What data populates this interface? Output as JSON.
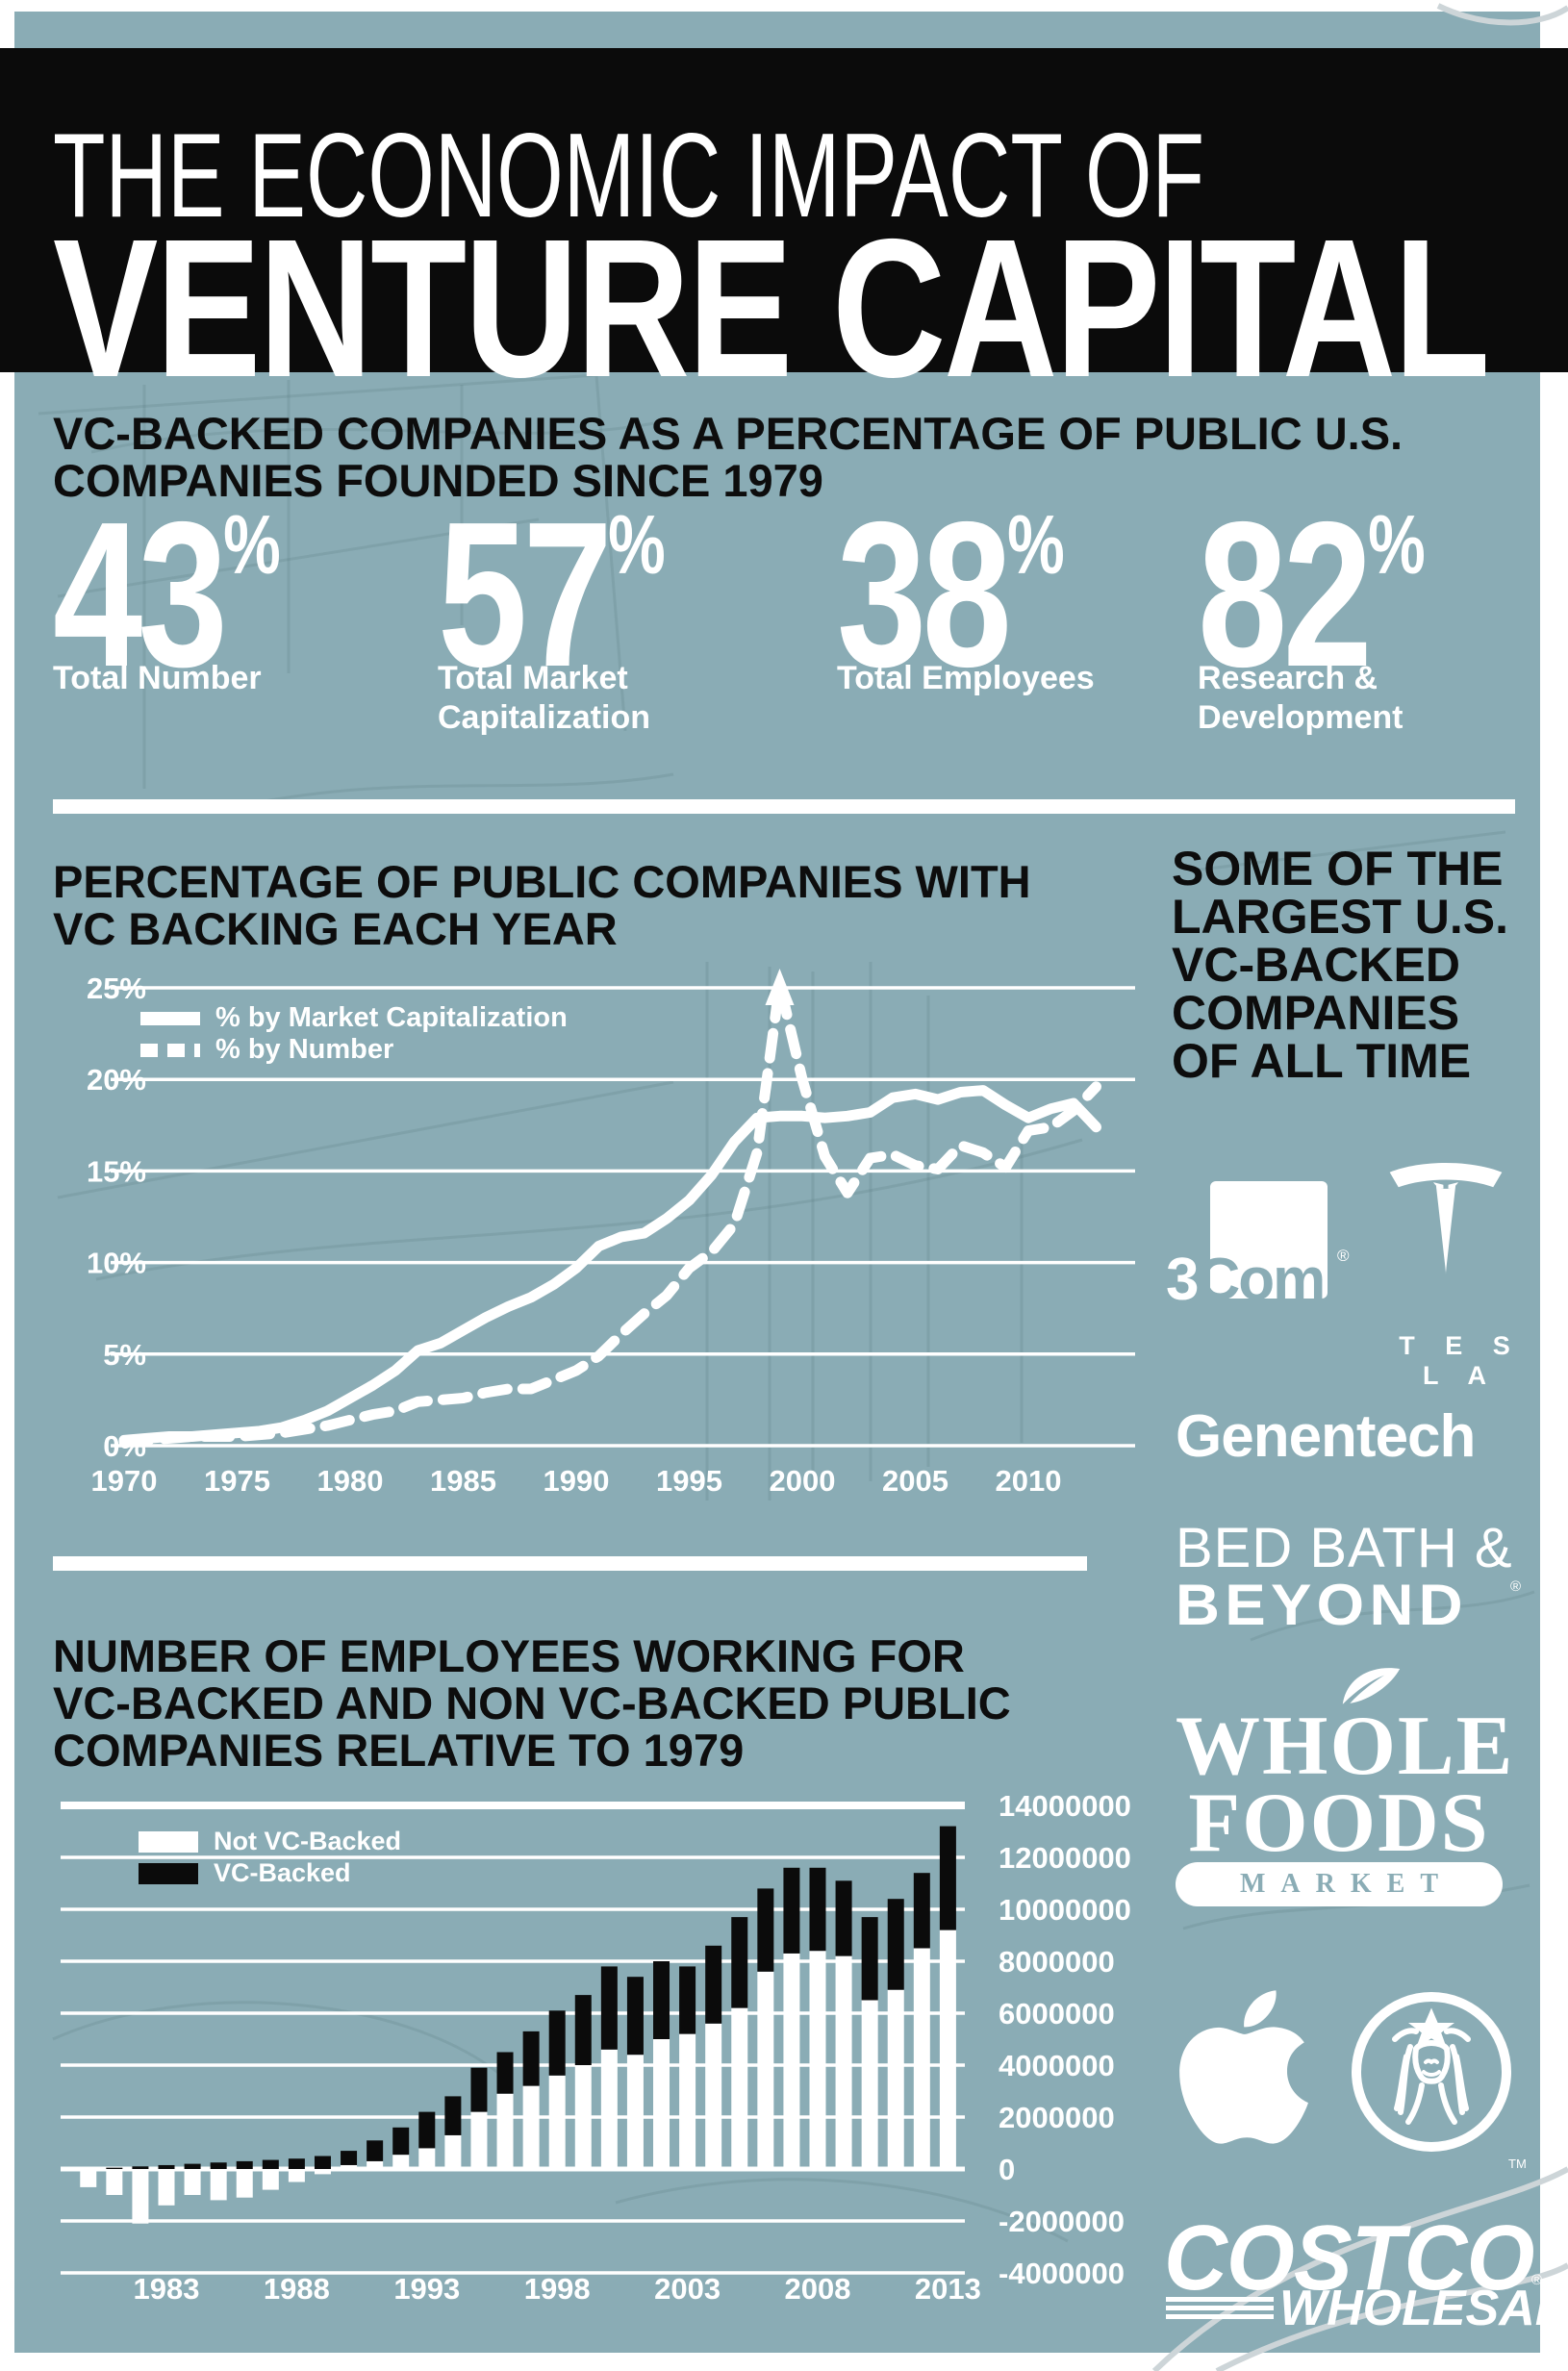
{
  "colors": {
    "background": "#8aacb5",
    "header": "#0b0b0b",
    "text": "#0d0d0d",
    "accent": "#ffffff"
  },
  "header": {
    "line1": "THE ECONOMIC IMPACT OF",
    "line2": "VENTURE CAPITAL"
  },
  "intro": {
    "heading_lines": [
      "VC-BACKED COMPANIES AS A PERCENTAGE OF PUBLIC U.S.",
      "COMPANIES FOUNDED SINCE 1979"
    ],
    "stats": [
      {
        "value": "43",
        "unit": "%",
        "label_lines": [
          "Total Number"
        ]
      },
      {
        "value": "57",
        "unit": "%",
        "label_lines": [
          "Total Market",
          "Capitalization"
        ]
      },
      {
        "value": "38",
        "unit": "%",
        "label_lines": [
          "Total Employees"
        ]
      },
      {
        "value": "82",
        "unit": "%",
        "label_lines": [
          "Research &",
          "Development"
        ]
      }
    ]
  },
  "chart_data": [
    {
      "type": "line",
      "title_lines": [
        "PERCENTAGE OF PUBLIC COMPANIES WITH",
        "VC BACKING EACH YEAR"
      ],
      "x_years": [
        1970,
        1971,
        1972,
        1973,
        1974,
        1975,
        1976,
        1977,
        1978,
        1979,
        1980,
        1981,
        1982,
        1983,
        1984,
        1985,
        1986,
        1987,
        1988,
        1989,
        1990,
        1991,
        1992,
        1993,
        1994,
        1995,
        1996,
        1997,
        1998,
        1999,
        2000,
        2001,
        2002,
        2003,
        2004,
        2005,
        2006,
        2007,
        2008,
        2009,
        2010,
        2011,
        2012,
        2013
      ],
      "series": [
        {
          "name": "% by Market Capitalization",
          "dash": false,
          "values": [
            0.3,
            0.4,
            0.5,
            0.5,
            0.6,
            0.7,
            0.8,
            1.0,
            1.4,
            1.9,
            2.6,
            3.3,
            4.1,
            5.2,
            5.6,
            6.3,
            7.0,
            7.6,
            8.1,
            8.8,
            9.7,
            10.9,
            11.4,
            11.6,
            12.4,
            13.4,
            14.8,
            16.6,
            17.9,
            18.0,
            18.0,
            17.9,
            18.0,
            18.2,
            19.0,
            19.2,
            18.9,
            19.3,
            19.4,
            18.6,
            17.9,
            18.4,
            18.7,
            17.4
          ]
        },
        {
          "name": "% by Number",
          "dash": true,
          "values": [
            0.2,
            0.3,
            0.4,
            0.5,
            0.5,
            0.5,
            0.6,
            0.7,
            0.9,
            1.1,
            1.4,
            1.7,
            1.9,
            2.4,
            2.5,
            2.6,
            2.9,
            3.1,
            3.1,
            3.6,
            4.1,
            4.9,
            6.1,
            7.2,
            8.2,
            9.7,
            10.6,
            12.1,
            16.0,
            25.2,
            20.0,
            15.8,
            13.8,
            15.7,
            15.9,
            15.3,
            15.1,
            16.4,
            16.0,
            15.2,
            17.2,
            17.4,
            18.3,
            19.6
          ]
        }
      ],
      "legend": [
        {
          "label": "% by Market Capitalization"
        },
        {
          "label": "% by Number"
        }
      ],
      "yticks": [
        {
          "value": 25,
          "label": "25%"
        },
        {
          "value": 20,
          "label": "20%"
        },
        {
          "value": 15,
          "label": "15%"
        },
        {
          "value": 10,
          "label": "10%"
        },
        {
          "value": 5,
          "label": "5%"
        },
        {
          "value": 0,
          "label": "0%"
        }
      ],
      "xticks": [
        1970,
        1975,
        1980,
        1985,
        1990,
        1995,
        2000,
        2005,
        2010
      ],
      "ylim": [
        0,
        25
      ],
      "grid": true,
      "annotation_arrow": {
        "series": "% by Number",
        "year": 1999,
        "note": "peak goes off scale"
      }
    },
    {
      "type": "bar",
      "title_lines": [
        "NUMBER OF EMPLOYEES WORKING FOR",
        "VC-BACKED AND NON VC-BACKED PUBLIC",
        "COMPANIES RELATIVE TO 1979"
      ],
      "stacked": true,
      "x_years": [
        1980,
        1981,
        1982,
        1983,
        1984,
        1985,
        1986,
        1987,
        1988,
        1989,
        1990,
        1991,
        1992,
        1993,
        1994,
        1995,
        1996,
        1997,
        1998,
        1999,
        2000,
        2001,
        2002,
        2003,
        2004,
        2005,
        2006,
        2007,
        2008,
        2009,
        2010,
        2011,
        2012,
        2013
      ],
      "series": [
        {
          "name": "Not VC-Backed",
          "color": "#ffffff",
          "values": [
            -700000,
            -1000000,
            -2100000,
            -1400000,
            -1000000,
            -1200000,
            -1100000,
            -800000,
            -500000,
            -200000,
            150000,
            300000,
            550000,
            800000,
            1300000,
            2200000,
            2900000,
            3200000,
            3600000,
            4000000,
            4600000,
            4400000,
            5000000,
            5200000,
            5600000,
            6200000,
            7600000,
            8300000,
            8400000,
            8200000,
            6500000,
            6900000,
            8500000,
            9200000
          ]
        },
        {
          "name": "VC-Backed",
          "color": "#0b0b0b",
          "values": [
            0,
            50000,
            100000,
            150000,
            200000,
            250000,
            300000,
            350000,
            400000,
            500000,
            550000,
            800000,
            1050000,
            1400000,
            1500000,
            1700000,
            1600000,
            2100000,
            2500000,
            2700000,
            3200000,
            3000000,
            3000000,
            2600000,
            3000000,
            3500000,
            3200000,
            3300000,
            3200000,
            2900000,
            3200000,
            3500000,
            2900000,
            4000000
          ]
        }
      ],
      "legend": [
        {
          "label": "Not VC-Backed"
        },
        {
          "label": "VC-Backed"
        }
      ],
      "yticks": [
        {
          "value": 14000000,
          "label": "14000000"
        },
        {
          "value": 12000000,
          "label": "12000000"
        },
        {
          "value": 10000000,
          "label": "10000000"
        },
        {
          "value": 8000000,
          "label": "8000000"
        },
        {
          "value": 6000000,
          "label": "6000000"
        },
        {
          "value": 4000000,
          "label": "4000000"
        },
        {
          "value": 2000000,
          "label": "2000000"
        },
        {
          "value": 0,
          "label": "0"
        },
        {
          "value": -2000000,
          "label": "-2000000"
        },
        {
          "value": -4000000,
          "label": "-4000000"
        }
      ],
      "xticks": [
        1983,
        1988,
        1993,
        1998,
        2003,
        2008,
        2013
      ],
      "ylim": [
        -4000000,
        14000000
      ],
      "grid": true
    }
  ],
  "sidebar": {
    "heading_lines": [
      "SOME OF THE",
      "LARGEST U.S.",
      "VC-BACKED",
      "COMPANIES",
      "OF ALL TIME"
    ],
    "logos": {
      "threecom": {
        "name": "3Com",
        "part1": "3",
        "part2": "Com",
        "reg": "®"
      },
      "tesla": {
        "name": "Tesla",
        "wordmark": "T E S L A"
      },
      "genentech": {
        "name": "Genentech",
        "wordmark": "Genentech"
      },
      "bedbath": {
        "name": "Bed Bath & Beyond",
        "line1": "BED BATH &",
        "line2": "BEYOND",
        "reg": "®"
      },
      "wholefoods": {
        "name": "Whole Foods Market",
        "line1": "WHOLE",
        "line2": "FOODS",
        "line3": "MARKET"
      },
      "apple": {
        "name": "Apple"
      },
      "starbucks": {
        "name": "Starbucks",
        "tm": "TM"
      },
      "costco": {
        "name": "Costco Wholesale",
        "line1": "COSTCO",
        "line2": "WHOLESALE",
        "reg": "®"
      }
    }
  }
}
